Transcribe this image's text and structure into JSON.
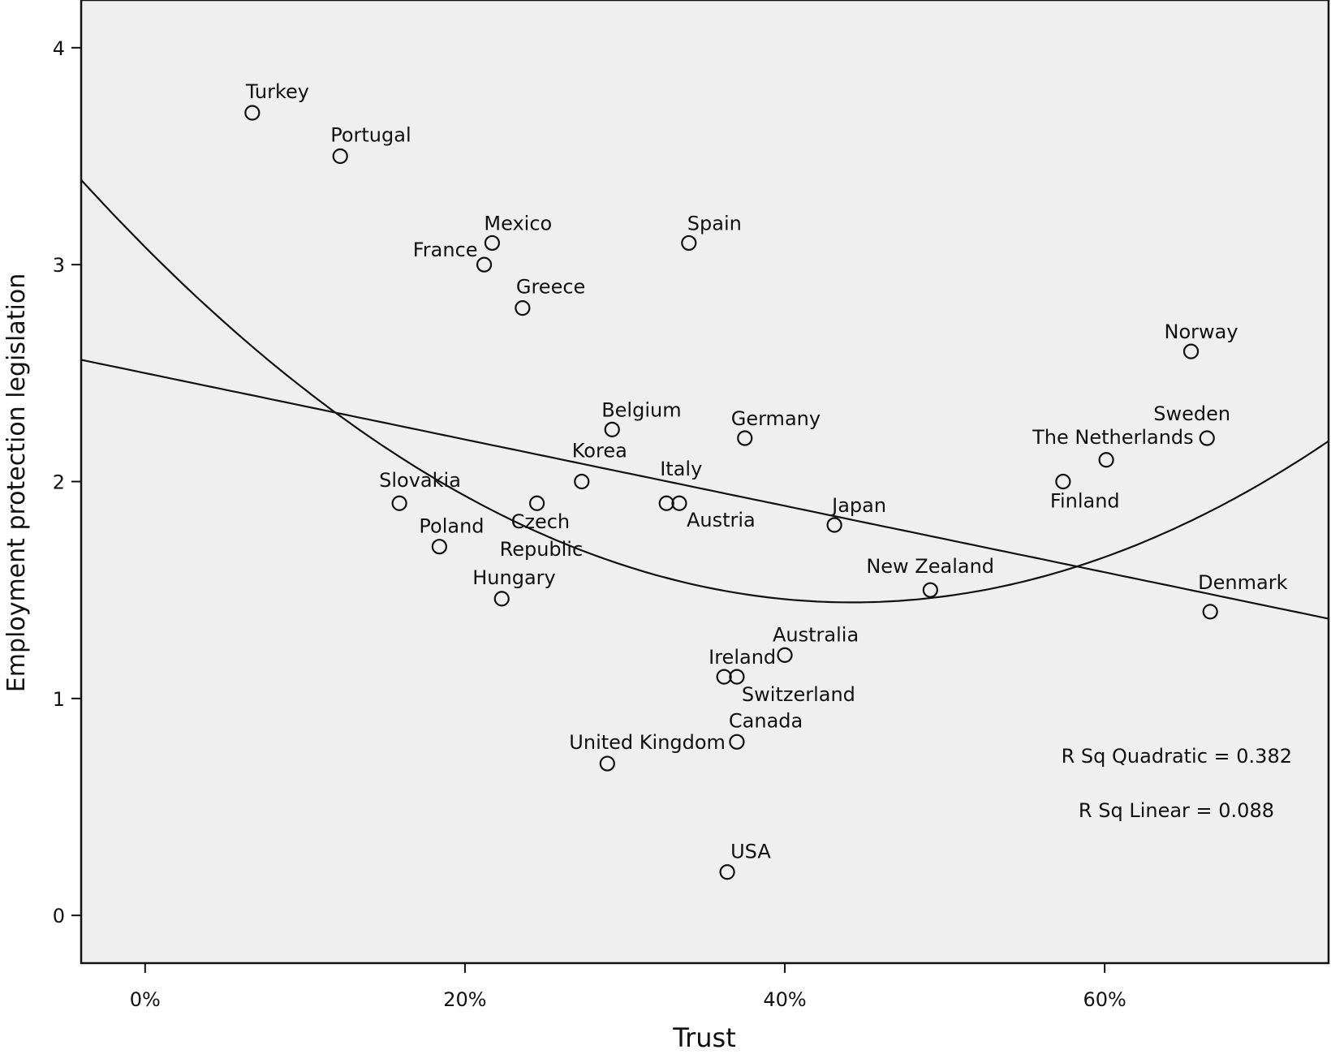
{
  "chart_data": {
    "type": "scatter",
    "xlabel": "Trust",
    "ylabel": "Employment protection legislation",
    "xlim": [
      -4,
      74
    ],
    "ylim": [
      -0.22,
      4.22
    ],
    "x_ticks": [
      0,
      20,
      40,
      60
    ],
    "x_tick_labels": [
      "0%",
      "20%",
      "40%",
      "60%"
    ],
    "y_ticks": [
      0,
      1,
      2,
      3,
      4
    ],
    "y_tick_labels": [
      "0",
      "1",
      "2",
      "3",
      "4"
    ],
    "grid": false,
    "legend": "none",
    "colors": {
      "plot_background": "#efefef",
      "ink": "#111111"
    },
    "points": [
      {
        "label": "Turkey",
        "x": 6.7,
        "y": 3.7
      },
      {
        "label": "Portugal",
        "x": 12.2,
        "y": 3.5
      },
      {
        "label": "Mexico",
        "x": 21.7,
        "y": 3.1
      },
      {
        "label": "France",
        "x": 21.2,
        "y": 3.0
      },
      {
        "label": "Spain",
        "x": 34.0,
        "y": 3.1
      },
      {
        "label": "Greece",
        "x": 23.6,
        "y": 2.8
      },
      {
        "label": "Belgium",
        "x": 29.2,
        "y": 2.24
      },
      {
        "label": "Germany",
        "x": 37.5,
        "y": 2.2
      },
      {
        "label": "Korea",
        "x": 27.3,
        "y": 2.0
      },
      {
        "label": "Italy",
        "x": 32.6,
        "y": 1.9
      },
      {
        "label": "Austria",
        "x": 33.4,
        "y": 1.9
      },
      {
        "label": "Slovakia",
        "x": 15.9,
        "y": 1.9
      },
      {
        "label": "Czech Republic",
        "x": 24.5,
        "y": 1.9
      },
      {
        "label": "Poland",
        "x": 18.4,
        "y": 1.7
      },
      {
        "label": "Hungary",
        "x": 22.3,
        "y": 1.46
      },
      {
        "label": "Japan",
        "x": 43.1,
        "y": 1.8
      },
      {
        "label": "New Zealand",
        "x": 49.1,
        "y": 1.5
      },
      {
        "label": "Norway",
        "x": 65.4,
        "y": 2.6
      },
      {
        "label": "Sweden",
        "x": 66.4,
        "y": 2.2
      },
      {
        "label": "The Netherlands",
        "x": 60.1,
        "y": 2.1
      },
      {
        "label": "Finland",
        "x": 57.4,
        "y": 2.0
      },
      {
        "label": "Denmark",
        "x": 66.6,
        "y": 1.4
      },
      {
        "label": "Australia",
        "x": 40.0,
        "y": 1.2
      },
      {
        "label": "Ireland",
        "x": 36.2,
        "y": 1.1
      },
      {
        "label": "Switzerland",
        "x": 37.0,
        "y": 1.1
      },
      {
        "label": "Canada",
        "x": 37.0,
        "y": 0.8
      },
      {
        "label": "United Kingdom",
        "x": 28.9,
        "y": 0.7
      },
      {
        "label": "USA",
        "x": 36.4,
        "y": 0.2
      }
    ],
    "fit_lines": [
      {
        "type": "linear",
        "intercept": 2.5,
        "slope": -0.0153
      },
      {
        "type": "quadratic",
        "a": 0.000838,
        "b": -0.0741,
        "c": 3.081
      }
    ],
    "annotations": [
      "R Sq Quadratic = 0.382",
      "R Sq Linear = 0.088"
    ]
  }
}
